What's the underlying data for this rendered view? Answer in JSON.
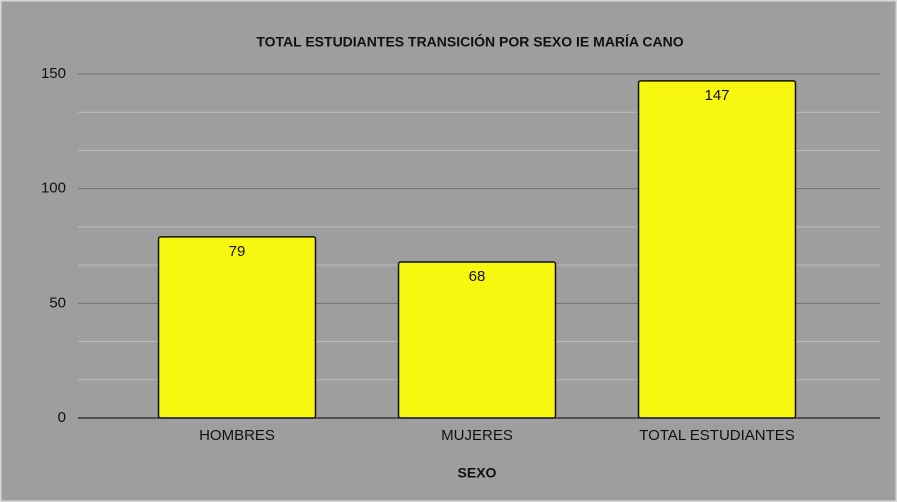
{
  "chart_data": {
    "type": "bar",
    "title": "TOTAL ESTUDIANTES TRANSICIÓN POR SEXO IE MARÍA CANO",
    "x_label": "SEXO",
    "categories": [
      "HOMBRES",
      "MUJERES",
      "TOTAL ESTUDIANTES"
    ],
    "values": [
      79,
      68,
      147
    ],
    "color": "#f7f70f",
    "ylim": [
      0,
      150
    ],
    "yticks": [
      0,
      50,
      100,
      150
    ],
    "grid": true,
    "minor_grid_divisions": 3
  }
}
